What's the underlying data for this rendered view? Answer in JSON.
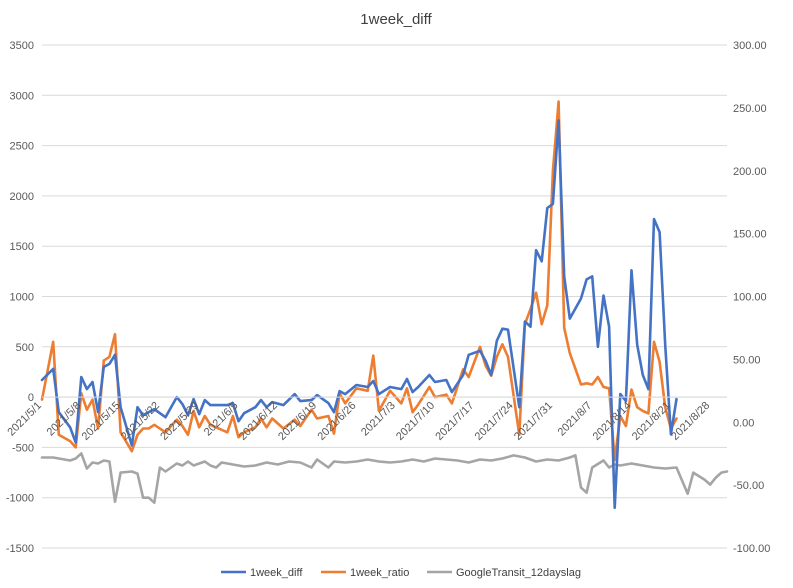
{
  "chart_data": {
    "type": "line",
    "title": "1week_diff",
    "legend_position": "bottom",
    "grid": true,
    "y_left": {
      "min": -1500,
      "max": 3500,
      "ticks": [
        "3500",
        "3000",
        "2500",
        "2000",
        "1500",
        "1000",
        "500",
        "0",
        "-500",
        "-1000",
        "-1500"
      ]
    },
    "y_right": {
      "min": -100,
      "max": 300,
      "ticks": [
        "300.00",
        "250.00",
        "200.00",
        "150.00",
        "100.00",
        "50.00",
        "0.00",
        "-50.00",
        "-100.00"
      ]
    },
    "x_start": "2021/5/1",
    "x_end": "2021/8/31",
    "x_tick_labels": [
      "2021/5/1",
      "2021/5/8",
      "2021/5/15",
      "2021/5/22",
      "2021/5/29",
      "2021/6/5",
      "2021/6/12",
      "2021/6/19",
      "2021/6/26",
      "2021/7/3",
      "2021/7/10",
      "2021/7/17",
      "2021/7/24",
      "2021/7/31",
      "2021/8/7",
      "2021/8/14",
      "2021/8/21",
      "2021/8/28"
    ],
    "series": [
      {
        "name": "1week_diff",
        "axis": "left",
        "color": "#4472c4",
        "points": [
          [
            "2021/5/1",
            170
          ],
          [
            "2021/5/3",
            280
          ],
          [
            "2021/5/4",
            -150
          ],
          [
            "2021/5/6",
            -300
          ],
          [
            "2021/5/7",
            -450
          ],
          [
            "2021/5/8",
            200
          ],
          [
            "2021/5/9",
            80
          ],
          [
            "2021/5/10",
            150
          ],
          [
            "2021/5/11",
            -150
          ],
          [
            "2021/5/12",
            300
          ],
          [
            "2021/5/13",
            330
          ],
          [
            "2021/5/14",
            420
          ],
          [
            "2021/5/15",
            -100
          ],
          [
            "2021/5/17",
            -480
          ],
          [
            "2021/5/18",
            -100
          ],
          [
            "2021/5/19",
            -180
          ],
          [
            "2021/5/20",
            -150
          ],
          [
            "2021/5/21",
            -120
          ],
          [
            "2021/5/23",
            -200
          ],
          [
            "2021/5/25",
            0
          ],
          [
            "2021/5/26",
            -70
          ],
          [
            "2021/5/27",
            -180
          ],
          [
            "2021/5/28",
            -20
          ],
          [
            "2021/5/29",
            -170
          ],
          [
            "2021/5/30",
            -30
          ],
          [
            "2021/5/31",
            -80
          ],
          [
            "2021/6/3",
            -80
          ],
          [
            "2021/6/4",
            -60
          ],
          [
            "2021/6/5",
            -240
          ],
          [
            "2021/6/6",
            -160
          ],
          [
            "2021/6/8",
            -100
          ],
          [
            "2021/6/9",
            -30
          ],
          [
            "2021/6/10",
            -100
          ],
          [
            "2021/6/11",
            -50
          ],
          [
            "2021/6/13",
            -80
          ],
          [
            "2021/6/15",
            30
          ],
          [
            "2021/6/16",
            -40
          ],
          [
            "2021/6/18",
            -30
          ],
          [
            "2021/6/19",
            20
          ],
          [
            "2021/6/21",
            -60
          ],
          [
            "2021/6/22",
            -150
          ],
          [
            "2021/6/23",
            60
          ],
          [
            "2021/6/24",
            30
          ],
          [
            "2021/6/26",
            120
          ],
          [
            "2021/6/28",
            100
          ],
          [
            "2021/6/29",
            160
          ],
          [
            "2021/6/30",
            30
          ],
          [
            "2021/7/2",
            100
          ],
          [
            "2021/7/4",
            80
          ],
          [
            "2021/7/5",
            180
          ],
          [
            "2021/7/6",
            50
          ],
          [
            "2021/7/7",
            100
          ],
          [
            "2021/7/9",
            220
          ],
          [
            "2021/7/10",
            150
          ],
          [
            "2021/7/12",
            170
          ],
          [
            "2021/7/13",
            50
          ],
          [
            "2021/7/15",
            220
          ],
          [
            "2021/7/16",
            420
          ],
          [
            "2021/7/18",
            460
          ],
          [
            "2021/7/19",
            360
          ],
          [
            "2021/7/20",
            220
          ],
          [
            "2021/7/21",
            560
          ],
          [
            "2021/7/22",
            680
          ],
          [
            "2021/7/23",
            670
          ],
          [
            "2021/7/25",
            -100
          ],
          [
            "2021/7/26",
            750
          ],
          [
            "2021/7/27",
            700
          ],
          [
            "2021/7/28",
            1460
          ],
          [
            "2021/7/29",
            1350
          ],
          [
            "2021/7/30",
            1880
          ],
          [
            "2021/7/31",
            1920
          ],
          [
            "2021/8/1",
            2750
          ],
          [
            "2021/8/2",
            1200
          ],
          [
            "2021/8/3",
            780
          ],
          [
            "2021/8/5",
            980
          ],
          [
            "2021/8/6",
            1170
          ],
          [
            "2021/8/7",
            1200
          ],
          [
            "2021/8/8",
            500
          ],
          [
            "2021/8/9",
            1010
          ],
          [
            "2021/8/10",
            700
          ],
          [
            "2021/8/11",
            -1100
          ],
          [
            "2021/8/12",
            30
          ],
          [
            "2021/8/13",
            -40
          ],
          [
            "2021/8/14",
            1260
          ],
          [
            "2021/8/15",
            520
          ],
          [
            "2021/8/16",
            220
          ],
          [
            "2021/8/17",
            80
          ],
          [
            "2021/8/18",
            1770
          ],
          [
            "2021/8/19",
            1640
          ],
          [
            "2021/8/20",
            520
          ],
          [
            "2021/8/21",
            -370
          ],
          [
            "2021/8/22",
            -20
          ]
        ]
      },
      {
        "name": "1week_ratio",
        "axis": "right",
        "color": "#ed7d31",
        "points": [
          [
            "2021/5/1",
            18
          ],
          [
            "2021/5/3",
            64
          ],
          [
            "2021/5/4",
            -10
          ],
          [
            "2021/5/6",
            -15
          ],
          [
            "2021/5/7",
            -20
          ],
          [
            "2021/5/8",
            23
          ],
          [
            "2021/5/9",
            10
          ],
          [
            "2021/5/10",
            18
          ],
          [
            "2021/5/11",
            -5
          ],
          [
            "2021/5/12",
            49
          ],
          [
            "2021/5/13",
            52
          ],
          [
            "2021/5/14",
            70
          ],
          [
            "2021/5/15",
            -8
          ],
          [
            "2021/5/17",
            -23
          ],
          [
            "2021/5/18",
            -10
          ],
          [
            "2021/5/19",
            -5
          ],
          [
            "2021/5/20",
            -5
          ],
          [
            "2021/5/21",
            -2
          ],
          [
            "2021/5/23",
            -8
          ],
          [
            "2021/5/25",
            2
          ],
          [
            "2021/5/26",
            -3
          ],
          [
            "2021/5/27",
            -10
          ],
          [
            "2021/5/28",
            9
          ],
          [
            "2021/5/29",
            -4
          ],
          [
            "2021/5/30",
            5
          ],
          [
            "2021/5/31",
            -2
          ],
          [
            "2021/6/3",
            -8
          ],
          [
            "2021/6/4",
            5
          ],
          [
            "2021/6/5",
            -12
          ],
          [
            "2021/6/6",
            -8
          ],
          [
            "2021/6/8",
            -4
          ],
          [
            "2021/6/9",
            3
          ],
          [
            "2021/6/10",
            -4
          ],
          [
            "2021/6/11",
            3
          ],
          [
            "2021/6/13",
            -5
          ],
          [
            "2021/6/15",
            2
          ],
          [
            "2021/6/16",
            -3
          ],
          [
            "2021/6/18",
            10
          ],
          [
            "2021/6/19",
            3
          ],
          [
            "2021/6/21",
            5
          ],
          [
            "2021/6/22",
            -9
          ],
          [
            "2021/6/23",
            23
          ],
          [
            "2021/6/24",
            15
          ],
          [
            "2021/6/26",
            27
          ],
          [
            "2021/6/28",
            25
          ],
          [
            "2021/6/29",
            53
          ],
          [
            "2021/6/30",
            9
          ],
          [
            "2021/7/2",
            25
          ],
          [
            "2021/7/4",
            15
          ],
          [
            "2021/7/5",
            27
          ],
          [
            "2021/7/6",
            8
          ],
          [
            "2021/7/7",
            14
          ],
          [
            "2021/7/9",
            28
          ],
          [
            "2021/7/10",
            20
          ],
          [
            "2021/7/12",
            22
          ],
          [
            "2021/7/13",
            15
          ],
          [
            "2021/7/15",
            42
          ],
          [
            "2021/7/16",
            36
          ],
          [
            "2021/7/18",
            60
          ],
          [
            "2021/7/19",
            45
          ],
          [
            "2021/7/20",
            37
          ],
          [
            "2021/7/21",
            52
          ],
          [
            "2021/7/22",
            62
          ],
          [
            "2021/7/23",
            52
          ],
          [
            "2021/7/25",
            -10
          ],
          [
            "2021/7/26",
            78
          ],
          [
            "2021/7/27",
            90
          ],
          [
            "2021/7/28",
            103
          ],
          [
            "2021/7/29",
            78
          ],
          [
            "2021/7/30",
            93
          ],
          [
            "2021/7/31",
            200
          ],
          [
            "2021/8/1",
            255
          ],
          [
            "2021/8/2",
            75
          ],
          [
            "2021/8/3",
            55
          ],
          [
            "2021/8/5",
            30
          ],
          [
            "2021/8/6",
            31
          ],
          [
            "2021/8/7",
            30
          ],
          [
            "2021/8/8",
            36
          ],
          [
            "2021/8/9",
            28
          ],
          [
            "2021/8/10",
            27
          ],
          [
            "2021/8/11",
            -30
          ],
          [
            "2021/8/12",
            5
          ],
          [
            "2021/8/13",
            -3
          ],
          [
            "2021/8/14",
            26
          ],
          [
            "2021/8/15",
            12
          ],
          [
            "2021/8/16",
            9
          ],
          [
            "2021/8/17",
            7
          ],
          [
            "2021/8/18",
            64
          ],
          [
            "2021/8/19",
            48
          ],
          [
            "2021/8/20",
            12
          ],
          [
            "2021/8/21",
            -5
          ],
          [
            "2021/8/22",
            3
          ]
        ]
      },
      {
        "name": "GoogleTransit_12dayslag",
        "axis": "left",
        "color": "#a5a5a5",
        "points": [
          [
            "2021/5/1",
            -600
          ],
          [
            "2021/5/3",
            -600
          ],
          [
            "2021/5/5",
            -620
          ],
          [
            "2021/5/6",
            -630
          ],
          [
            "2021/5/7",
            -610
          ],
          [
            "2021/5/8",
            -560
          ],
          [
            "2021/5/9",
            -710
          ],
          [
            "2021/5/10",
            -650
          ],
          [
            "2021/5/11",
            -660
          ],
          [
            "2021/5/12",
            -630
          ],
          [
            "2021/5/13",
            -640
          ],
          [
            "2021/5/14",
            -1040
          ],
          [
            "2021/5/15",
            -750
          ],
          [
            "2021/5/17",
            -740
          ],
          [
            "2021/5/18",
            -760
          ],
          [
            "2021/5/19",
            -1000
          ],
          [
            "2021/5/20",
            -1000
          ],
          [
            "2021/5/21",
            -1050
          ],
          [
            "2021/5/22",
            -700
          ],
          [
            "2021/5/23",
            -740
          ],
          [
            "2021/5/25",
            -660
          ],
          [
            "2021/5/26",
            -680
          ],
          [
            "2021/5/27",
            -640
          ],
          [
            "2021/5/28",
            -680
          ],
          [
            "2021/5/29",
            -660
          ],
          [
            "2021/5/30",
            -640
          ],
          [
            "2021/5/31",
            -680
          ],
          [
            "2021/6/1",
            -700
          ],
          [
            "2021/6/2",
            -650
          ],
          [
            "2021/6/4",
            -670
          ],
          [
            "2021/6/6",
            -690
          ],
          [
            "2021/6/8",
            -680
          ],
          [
            "2021/6/10",
            -650
          ],
          [
            "2021/6/12",
            -670
          ],
          [
            "2021/6/14",
            -640
          ],
          [
            "2021/6/16",
            -650
          ],
          [
            "2021/6/18",
            -700
          ],
          [
            "2021/6/19",
            -620
          ],
          [
            "2021/6/21",
            -700
          ],
          [
            "2021/6/22",
            -640
          ],
          [
            "2021/6/24",
            -650
          ],
          [
            "2021/6/26",
            -640
          ],
          [
            "2021/6/28",
            -620
          ],
          [
            "2021/6/30",
            -640
          ],
          [
            "2021/7/2",
            -650
          ],
          [
            "2021/7/4",
            -640
          ],
          [
            "2021/7/6",
            -620
          ],
          [
            "2021/7/8",
            -640
          ],
          [
            "2021/7/10",
            -610
          ],
          [
            "2021/7/12",
            -620
          ],
          [
            "2021/7/14",
            -630
          ],
          [
            "2021/7/16",
            -650
          ],
          [
            "2021/7/18",
            -620
          ],
          [
            "2021/7/20",
            -630
          ],
          [
            "2021/7/22",
            -610
          ],
          [
            "2021/7/24",
            -580
          ],
          [
            "2021/7/26",
            -600
          ],
          [
            "2021/7/28",
            -640
          ],
          [
            "2021/7/30",
            -620
          ],
          [
            "2021/8/1",
            -630
          ],
          [
            "2021/8/3",
            -600
          ],
          [
            "2021/8/4",
            -580
          ],
          [
            "2021/8/5",
            -900
          ],
          [
            "2021/8/6",
            -950
          ],
          [
            "2021/8/7",
            -700
          ],
          [
            "2021/8/9",
            -630
          ],
          [
            "2021/8/10",
            -700
          ],
          [
            "2021/8/11",
            -670
          ],
          [
            "2021/8/12",
            -680
          ],
          [
            "2021/8/14",
            -660
          ],
          [
            "2021/8/16",
            -680
          ],
          [
            "2021/8/18",
            -700
          ],
          [
            "2021/8/20",
            -710
          ],
          [
            "2021/8/22",
            -700
          ],
          [
            "2021/8/24",
            -960
          ],
          [
            "2021/8/25",
            -750
          ],
          [
            "2021/8/27",
            -820
          ],
          [
            "2021/8/28",
            -870
          ],
          [
            "2021/8/29",
            -800
          ],
          [
            "2021/8/30",
            -750
          ],
          [
            "2021/8/31",
            -740
          ]
        ]
      }
    ]
  }
}
